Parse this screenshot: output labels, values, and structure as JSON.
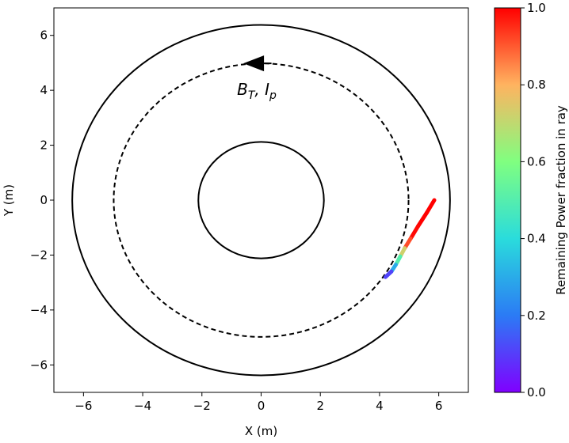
{
  "chart_data": {
    "type": "line",
    "xlabel": "X (m)",
    "ylabel": "Y (m)",
    "xlim": [
      -7,
      7
    ],
    "ylim": [
      -7,
      7
    ],
    "xticks": [
      -6,
      -4,
      -2,
      0,
      2,
      4,
      6
    ],
    "yticks": [
      -6,
      -4,
      -2,
      0,
      2,
      4,
      6
    ],
    "xtick_labels": [
      "−6",
      "−4",
      "−2",
      "0",
      "2",
      "4",
      "6"
    ],
    "ytick_labels": [
      "−6",
      "−4",
      "−2",
      "0",
      "2",
      "4",
      "6"
    ],
    "grid": false,
    "circles": [
      {
        "name": "inner-wall",
        "radius": 2.12,
        "style": "solid"
      },
      {
        "name": "magnetic-axis",
        "radius": 4.98,
        "style": "dashed"
      },
      {
        "name": "outer-wall",
        "radius": 6.38,
        "style": "solid"
      }
    ],
    "annotation": {
      "main": "B",
      "sub1": "T",
      "sep": ", ",
      "main2": "I",
      "sub2": "p",
      "arrow_from": [
        0.35,
        4.98
      ],
      "arrow_to": [
        -0.6,
        4.98
      ]
    },
    "ray": {
      "x": [
        5.85,
        5.6,
        5.3,
        5.05,
        4.85,
        4.7,
        4.55,
        4.4,
        4.2
      ],
      "y": [
        0.0,
        -0.45,
        -0.95,
        -1.4,
        -1.75,
        -2.05,
        -2.35,
        -2.6,
        -2.8
      ],
      "power": [
        1.0,
        1.0,
        1.0,
        0.98,
        0.85,
        0.6,
        0.4,
        0.2,
        0.02
      ]
    },
    "colorbar": {
      "label": "Remaining Power fraction in ray",
      "range": [
        0.0,
        1.0
      ],
      "ticks": [
        "0.0",
        "0.2",
        "0.4",
        "0.6",
        "0.8",
        "1.0"
      ],
      "colormap": "rainbow",
      "stops": [
        "#8000ff",
        "#2b7bf5",
        "#2adcdc",
        "#80ff80",
        "#ffb360",
        "#ff0000"
      ]
    }
  }
}
